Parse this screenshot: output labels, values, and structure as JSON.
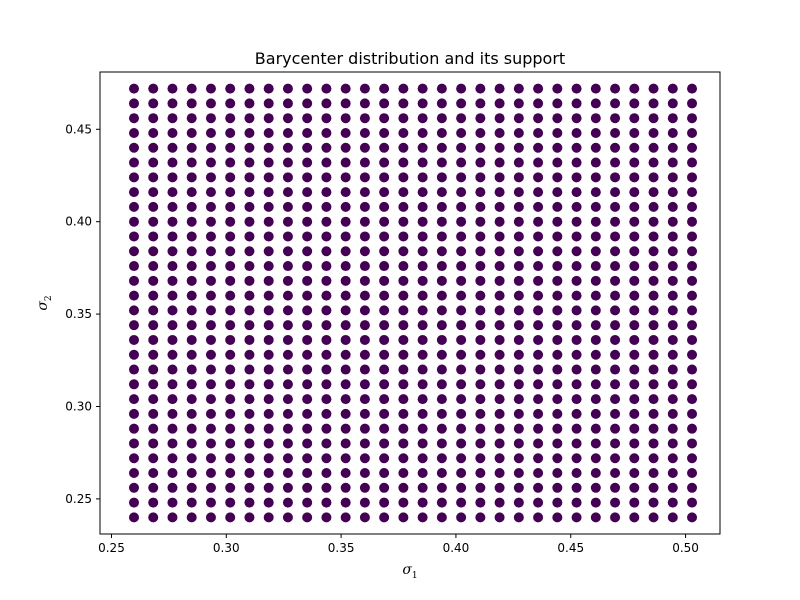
{
  "chart_data": {
    "type": "scatter",
    "title": "Barycenter distribution and its support",
    "xlabel": {
      "symbol": "σ",
      "subscript": "1"
    },
    "ylabel": {
      "symbol": "σ",
      "subscript": "2"
    },
    "xlim": [
      0.245,
      0.515
    ],
    "ylim": [
      0.231,
      0.481
    ],
    "xticks": [
      0.25,
      0.3,
      0.35,
      0.4,
      0.45,
      0.5
    ],
    "xtick_labels": [
      "0.25",
      "0.30",
      "0.35",
      "0.40",
      "0.45",
      "0.50"
    ],
    "yticks": [
      0.25,
      0.3,
      0.35,
      0.4,
      0.45
    ],
    "ytick_labels": [
      "0.25",
      "0.30",
      "0.35",
      "0.40",
      "0.45"
    ],
    "grid": false,
    "colormap": "viridis",
    "grid_x": {
      "start": 0.2598,
      "step": 0.00838,
      "count": 30
    },
    "grid_y": {
      "start": 0.24,
      "step": 0.008,
      "count": 30
    },
    "background_color": "#440154",
    "nonzero_points": [
      {
        "x": 0.3598,
        "y": 0.376,
        "color": "#3b528b"
      },
      {
        "x": 0.3682,
        "y": 0.376,
        "color": "#3b528b"
      },
      {
        "x": 0.3766,
        "y": 0.376,
        "color": "#3b528b"
      },
      {
        "x": 0.3514,
        "y": 0.368,
        "color": "#3b528b"
      },
      {
        "x": 0.3598,
        "y": 0.368,
        "color": "#3b528b"
      },
      {
        "x": 0.3682,
        "y": 0.368,
        "color": "#3b528b"
      },
      {
        "x": 0.3766,
        "y": 0.368,
        "color": "#3b528b"
      },
      {
        "x": 0.385,
        "y": 0.368,
        "color": "#3b528b"
      },
      {
        "x": 0.343,
        "y": 0.36,
        "color": "#3b528b"
      },
      {
        "x": 0.3514,
        "y": 0.36,
        "color": "#31688e"
      },
      {
        "x": 0.3598,
        "y": 0.36,
        "color": "#31688e"
      },
      {
        "x": 0.3682,
        "y": 0.36,
        "color": "#31688e"
      },
      {
        "x": 0.3766,
        "y": 0.36,
        "color": "#31688e"
      },
      {
        "x": 0.385,
        "y": 0.36,
        "color": "#31688e"
      },
      {
        "x": 0.3346,
        "y": 0.352,
        "color": "#3b528b"
      },
      {
        "x": 0.343,
        "y": 0.352,
        "color": "#31688e"
      },
      {
        "x": 0.3514,
        "y": 0.352,
        "color": "#26828e"
      },
      {
        "x": 0.3598,
        "y": 0.352,
        "color": "#26828e"
      },
      {
        "x": 0.3682,
        "y": 0.352,
        "color": "#35b779"
      },
      {
        "x": 0.3766,
        "y": 0.352,
        "color": "#26828e"
      },
      {
        "x": 0.385,
        "y": 0.352,
        "color": "#31688e"
      },
      {
        "x": 0.3262,
        "y": 0.344,
        "color": "#3b528b"
      },
      {
        "x": 0.3346,
        "y": 0.344,
        "color": "#3b528b"
      },
      {
        "x": 0.343,
        "y": 0.344,
        "color": "#8fd744"
      },
      {
        "x": 0.3514,
        "y": 0.344,
        "color": "#1f9e89"
      },
      {
        "x": 0.3598,
        "y": 0.344,
        "color": "#1f9e89"
      },
      {
        "x": 0.3682,
        "y": 0.344,
        "color": "#35b779"
      },
      {
        "x": 0.3766,
        "y": 0.344,
        "color": "#1f9e89"
      },
      {
        "x": 0.385,
        "y": 0.344,
        "color": "#31688e"
      },
      {
        "x": 0.3346,
        "y": 0.336,
        "color": "#3b528b"
      },
      {
        "x": 0.343,
        "y": 0.336,
        "color": "#31688e"
      },
      {
        "x": 0.3514,
        "y": 0.336,
        "color": "#1f9e89"
      },
      {
        "x": 0.3598,
        "y": 0.336,
        "color": "#5ec962"
      },
      {
        "x": 0.3682,
        "y": 0.336,
        "color": "#fde725"
      },
      {
        "x": 0.3766,
        "y": 0.336,
        "color": "#1f9e89"
      },
      {
        "x": 0.385,
        "y": 0.336,
        "color": "#31688e"
      },
      {
        "x": 0.3346,
        "y": 0.328,
        "color": "#3b528b"
      },
      {
        "x": 0.343,
        "y": 0.328,
        "color": "#31688e"
      },
      {
        "x": 0.3514,
        "y": 0.328,
        "color": "#26828e"
      },
      {
        "x": 0.3598,
        "y": 0.328,
        "color": "#35b779"
      },
      {
        "x": 0.3682,
        "y": 0.328,
        "color": "#26828e"
      },
      {
        "x": 0.3766,
        "y": 0.328,
        "color": "#26828e"
      },
      {
        "x": 0.385,
        "y": 0.328,
        "color": "#31688e"
      },
      {
        "x": 0.4017,
        "y": 0.328,
        "color": "#3b528b"
      },
      {
        "x": 0.343,
        "y": 0.32,
        "color": "#3b528b"
      },
      {
        "x": 0.3514,
        "y": 0.32,
        "color": "#3b528b"
      },
      {
        "x": 0.3598,
        "y": 0.32,
        "color": "#31688e"
      },
      {
        "x": 0.3682,
        "y": 0.32,
        "color": "#31688e"
      },
      {
        "x": 0.3766,
        "y": 0.32,
        "color": "#31688e"
      },
      {
        "x": 0.385,
        "y": 0.32,
        "color": "#3b528b"
      },
      {
        "x": 0.3682,
        "y": 0.312,
        "color": "#3b528b"
      },
      {
        "x": 0.3766,
        "y": 0.312,
        "color": "#3b528b"
      },
      {
        "x": 0.385,
        "y": 0.312,
        "color": "#3b528b"
      }
    ]
  }
}
